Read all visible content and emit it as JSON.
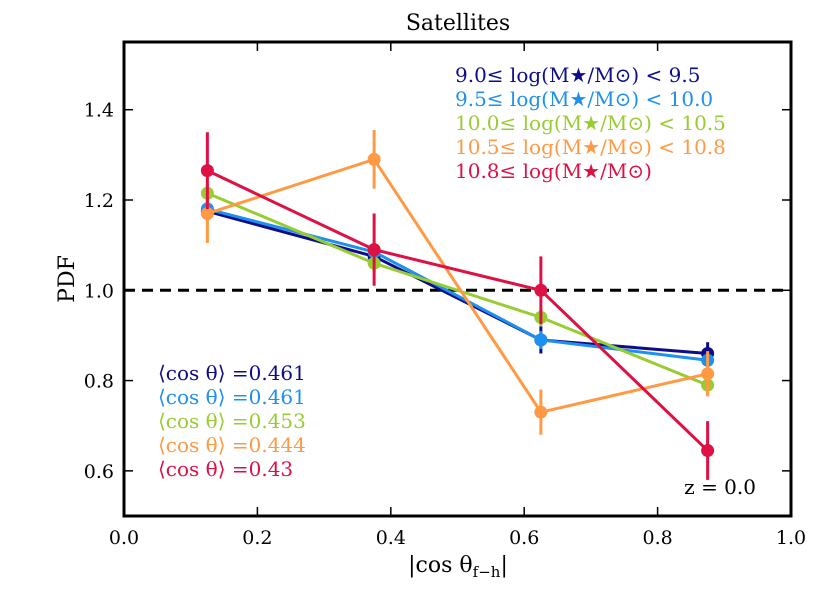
{
  "chart_data": {
    "type": "line",
    "title": "Satellites",
    "xlabel": "|cos θ",
    "xlabel_sub": "f−h",
    "xlabel_close": "|",
    "ylabel": "PDF",
    "xlim": [
      0.0,
      1.0
    ],
    "ylim": [
      0.5,
      1.55
    ],
    "xticks": [
      0.0,
      0.2,
      0.4,
      0.6,
      0.8,
      1.0
    ],
    "xtick_labels": [
      "0.0",
      "0.2",
      "0.4",
      "0.6",
      "0.8",
      "1.0"
    ],
    "yticks": [
      0.6,
      0.8,
      1.0,
      1.2,
      1.4
    ],
    "ytick_labels": [
      "0.6",
      "0.8",
      "1.0",
      "1.2",
      "1.4"
    ],
    "reference_line": {
      "y": 1.0,
      "style": "dashed",
      "color": "#000000"
    },
    "x": [
      0.125,
      0.375,
      0.625,
      0.875
    ],
    "series": [
      {
        "name": "9.0≤ log(M★/M⊙) < 9.5",
        "color": "#0d0d8a",
        "values": [
          1.175,
          1.075,
          0.89,
          0.86
        ],
        "errors": [
          0.02,
          0.02,
          0.03,
          0.025
        ],
        "mean_label": "⟨cos θ⟩ =0.461"
      },
      {
        "name": "9.5≤ log(M★/M⊙) < 10.0",
        "color": "#1e90ee",
        "values": [
          1.18,
          1.085,
          0.89,
          0.845
        ],
        "errors": [
          0.02,
          0.02,
          0.02,
          0.02
        ],
        "mean_label": "⟨cos θ⟩ =0.461"
      },
      {
        "name": "10.0≤ log(M★/M⊙) < 10.5",
        "color": "#99cc33",
        "values": [
          1.215,
          1.06,
          0.94,
          0.79
        ],
        "errors": [
          0.02,
          0.02,
          0.02,
          0.02
        ],
        "mean_label": "⟨cos θ⟩ =0.453"
      },
      {
        "name": "10.5≤ log(M★/M⊙) < 10.8",
        "color": "#ff9944",
        "values": [
          1.17,
          1.29,
          0.73,
          0.815
        ],
        "errors": [
          0.065,
          0.065,
          0.05,
          0.05
        ],
        "mean_label": "⟨cos θ⟩ =0.444"
      },
      {
        "name": "10.8≤ log(M★/M⊙)",
        "color": "#dd1144",
        "values": [
          1.265,
          1.09,
          1.0,
          0.645
        ],
        "errors": [
          0.085,
          0.08,
          0.075,
          0.065
        ],
        "mean_label": "⟨cos θ⟩ =0.43"
      }
    ],
    "annotation": "z = 0.0"
  }
}
